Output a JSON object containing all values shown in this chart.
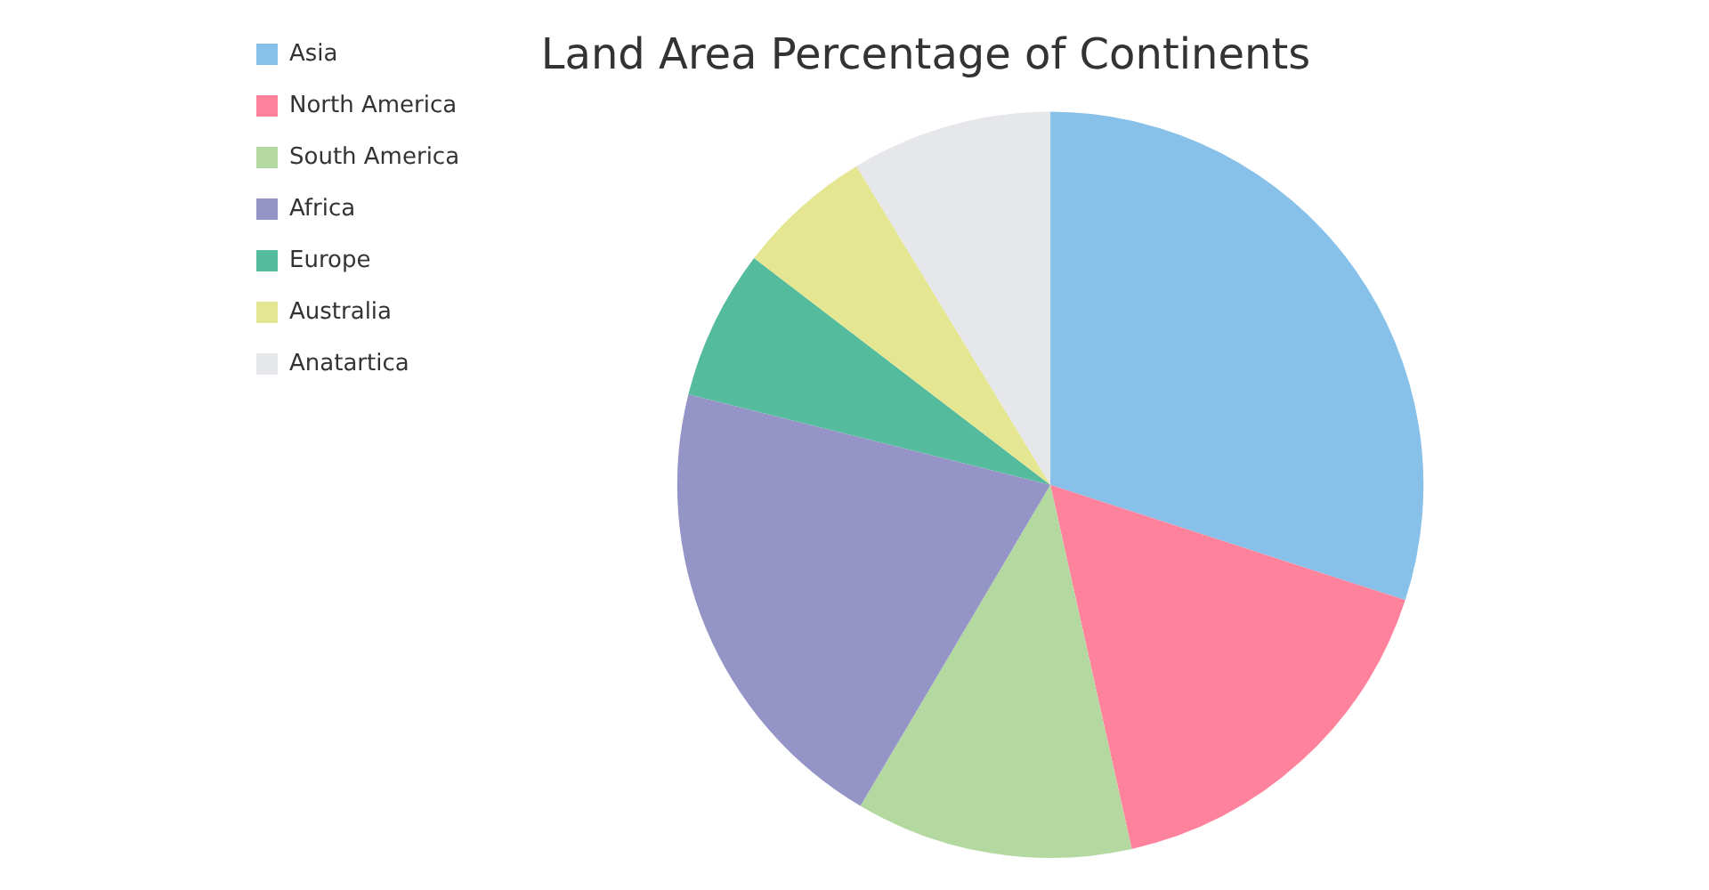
{
  "chart_data": {
    "type": "pie",
    "title": "Land Area Percentage of Continents",
    "categories": [
      "Asia",
      "North America",
      "South America",
      "Africa",
      "Europe",
      "Australia",
      "Anatartica"
    ],
    "values": [
      30,
      16.5,
      12,
      20.4,
      6.5,
      5.9,
      8.7
    ],
    "colors": [
      "#87c0e8",
      "#ff829d",
      "#b3d9a1",
      "#9494c6",
      "#55bb9d",
      "#e4e691",
      "#e6e7eb"
    ],
    "legend": "top left"
  }
}
